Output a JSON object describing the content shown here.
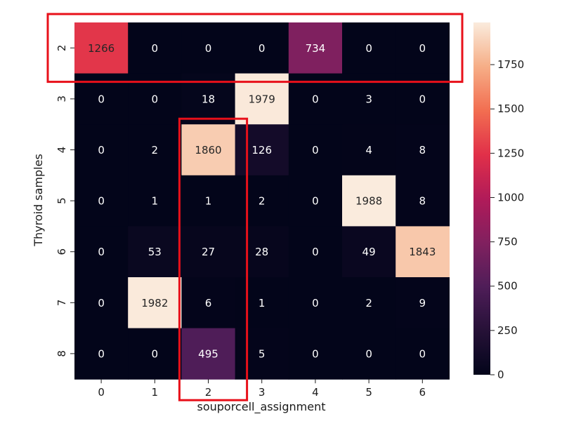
{
  "chart_data": {
    "type": "heatmap",
    "xlabel": "souporcell_assignment",
    "ylabel": "Thyroid samples",
    "x_categories": [
      "0",
      "1",
      "2",
      "3",
      "4",
      "5",
      "6"
    ],
    "y_categories": [
      "2",
      "3",
      "4",
      "5",
      "6",
      "7",
      "8"
    ],
    "values": [
      [
        1266,
        0,
        0,
        0,
        734,
        0,
        0
      ],
      [
        0,
        0,
        18,
        1979,
        0,
        3,
        0
      ],
      [
        0,
        2,
        1860,
        126,
        0,
        4,
        8
      ],
      [
        0,
        1,
        1,
        2,
        0,
        1988,
        8
      ],
      [
        0,
        53,
        27,
        28,
        0,
        49,
        1843
      ],
      [
        0,
        1982,
        6,
        1,
        0,
        2,
        9
      ],
      [
        0,
        0,
        495,
        5,
        0,
        0,
        0
      ]
    ],
    "colorbar": {
      "colormap": "rocket",
      "range": [
        0,
        1988
      ],
      "ticks": [
        0,
        250,
        500,
        750,
        1000,
        1250,
        1500,
        1750
      ],
      "tick_labels": [
        "0",
        "250",
        "500",
        "750",
        "1000",
        "1250",
        "1500",
        "1750"
      ]
    },
    "annotations": {
      "highlight_color": "#e8101a",
      "highlight_row": "2",
      "highlight_column": "2"
    }
  }
}
